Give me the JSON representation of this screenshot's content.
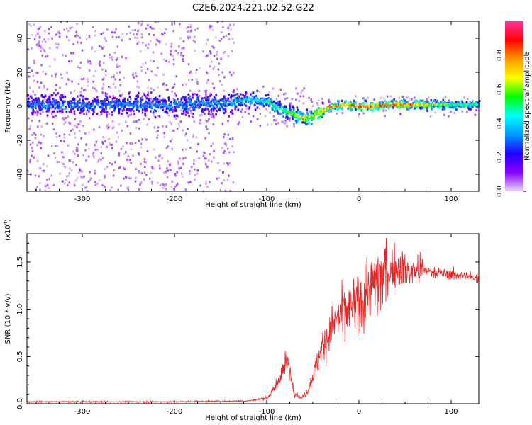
{
  "chart_data": [
    {
      "type": "heatmap",
      "title": "C2E6.2024.221.02.52.G22",
      "xlabel": "Height of straight line (km)",
      "ylabel": "Frequency (Hz)",
      "xlim": [
        -360,
        130
      ],
      "ylim": [
        -50,
        50
      ],
      "xticks": [
        -300,
        -200,
        -100,
        0,
        100
      ],
      "yticks": [
        -40,
        -20,
        0,
        20,
        40
      ],
      "colorbar": {
        "label": "Normalized spectral amplitude",
        "range": [
          0,
          1
        ],
        "ticks": [
          "0.0",
          "0.2",
          "0.4",
          "0.6",
          "0.8"
        ],
        "tick_values": [
          0.0,
          0.2,
          0.4,
          0.6,
          0.8
        ],
        "colors": [
          "#e8d8ff",
          "#8800ff",
          "#2200ff",
          "#0099ff",
          "#00ffff",
          "#00ff00",
          "#ffff00",
          "#ff9900",
          "#ff0000",
          "#ff3399"
        ]
      },
      "ridge_center_hz": [
        {
          "x": -360,
          "y": 1
        },
        {
          "x": -300,
          "y": 1
        },
        {
          "x": -200,
          "y": 1
        },
        {
          "x": -140,
          "y": 2
        },
        {
          "x": -120,
          "y": 4
        },
        {
          "x": -100,
          "y": 3
        },
        {
          "x": -80,
          "y": -3
        },
        {
          "x": -60,
          "y": -7
        },
        {
          "x": -45,
          "y": -4
        },
        {
          "x": -30,
          "y": 0
        },
        {
          "x": -15,
          "y": 1
        },
        {
          "x": 0,
          "y": 0
        },
        {
          "x": 40,
          "y": 1
        },
        {
          "x": 80,
          "y": 1
        },
        {
          "x": 130,
          "y": 1
        }
      ],
      "ridge_peak_amplitude": [
        {
          "x": -360,
          "y": 0.35
        },
        {
          "x": -140,
          "y": 0.4
        },
        {
          "x": -120,
          "y": 0.5
        },
        {
          "x": -100,
          "y": 0.55
        },
        {
          "x": -80,
          "y": 0.6
        },
        {
          "x": -60,
          "y": 0.75
        },
        {
          "x": -45,
          "y": 0.8
        },
        {
          "x": -20,
          "y": 0.9
        },
        {
          "x": 0,
          "y": 0.95
        },
        {
          "x": 60,
          "y": 0.9
        },
        {
          "x": 80,
          "y": 0.7
        },
        {
          "x": 130,
          "y": 0.55
        }
      ]
    },
    {
      "type": "line",
      "series_name": "SNR",
      "xlabel": "Height of straight line (km)",
      "ylabel": "SNR (10 * v/v)",
      "scale_label": "(x10",
      "scale_exp": "4",
      "scale_close": ")",
      "xlim": [
        -360,
        130
      ],
      "ylim": [
        0,
        1.8
      ],
      "xticks": [
        -300,
        -200,
        -100,
        0,
        100
      ],
      "yticks": [
        "0.0",
        "0.5",
        "1.0",
        "1.5"
      ],
      "ytick_values": [
        0.0,
        0.5,
        1.0,
        1.5
      ],
      "color": "#ee2222",
      "envelope": [
        {
          "x": -360,
          "y": 0.02
        },
        {
          "x": -200,
          "y": 0.02
        },
        {
          "x": -120,
          "y": 0.03
        },
        {
          "x": -100,
          "y": 0.06
        },
        {
          "x": -92,
          "y": 0.15
        },
        {
          "x": -85,
          "y": 0.3
        },
        {
          "x": -78,
          "y": 0.45
        },
        {
          "x": -75,
          "y": 0.35
        },
        {
          "x": -70,
          "y": 0.12
        },
        {
          "x": -62,
          "y": 0.06
        },
        {
          "x": -55,
          "y": 0.15
        },
        {
          "x": -48,
          "y": 0.35
        },
        {
          "x": -40,
          "y": 0.6
        },
        {
          "x": -30,
          "y": 0.8
        },
        {
          "x": -20,
          "y": 0.95
        },
        {
          "x": -10,
          "y": 1.0
        },
        {
          "x": 0,
          "y": 1.05
        },
        {
          "x": 10,
          "y": 1.2
        },
        {
          "x": 25,
          "y": 1.35
        },
        {
          "x": 40,
          "y": 1.45
        },
        {
          "x": 55,
          "y": 1.4
        },
        {
          "x": 70,
          "y": 1.42
        },
        {
          "x": 90,
          "y": 1.38
        },
        {
          "x": 110,
          "y": 1.36
        },
        {
          "x": 130,
          "y": 1.33
        }
      ]
    }
  ]
}
